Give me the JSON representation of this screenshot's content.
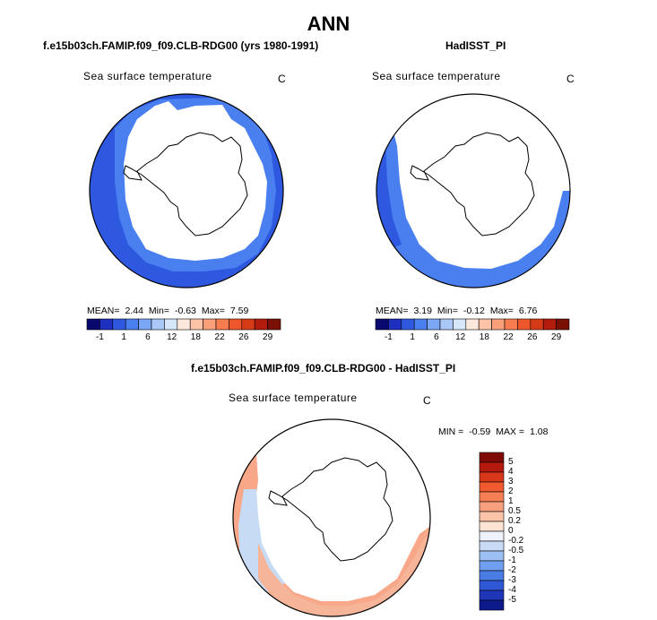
{
  "title": "ANN",
  "panels": [
    {
      "title": "f.e15b03ch.FAMIP.f09_f09.CLB-RDG00 (yrs 1980-1991)",
      "variable": "Sea surface temperature",
      "unit": "C",
      "stats": {
        "mean_label": "MEAN=",
        "mean": "2.44",
        "min_label": "Min=",
        "min": "-0.63",
        "max_label": "Max=",
        "max": "7.59"
      },
      "colorbar": {
        "ticks": [
          "-1",
          "1",
          "6",
          "12",
          "18",
          "22",
          "26",
          "29"
        ],
        "colors": [
          "#08086e",
          "#1e2fc0",
          "#2e58e0",
          "#4a7ff0",
          "#7aa6f5",
          "#a9c8f8",
          "#d6e6fb",
          "#fde8dd",
          "#fcc3a8",
          "#f9a07a",
          "#f77c50",
          "#f0562c",
          "#d63a17",
          "#b31b0a",
          "#7a0f06"
        ]
      }
    },
    {
      "title": "HadISST_PI",
      "variable": "Sea surface temperature",
      "unit": "C",
      "stats": {
        "mean_label": "MEAN=",
        "mean": "3.19",
        "min_label": "Min=",
        "min": "-0.12",
        "max_label": "Max=",
        "max": "6.76"
      },
      "colorbar": {
        "ticks": [
          "-1",
          "1",
          "6",
          "12",
          "18",
          "22",
          "26",
          "29"
        ],
        "colors": [
          "#08086e",
          "#1e2fc0",
          "#2e58e0",
          "#4a7ff0",
          "#7aa6f5",
          "#a9c8f8",
          "#d6e6fb",
          "#fde8dd",
          "#fcc3a8",
          "#f9a07a",
          "#f77c50",
          "#f0562c",
          "#d63a17",
          "#b31b0a",
          "#7a0f06"
        ]
      }
    },
    {
      "title": "f.e15b03ch.FAMIP.f09_f09.CLB-RDG00 - HadISST_PI",
      "variable": "Sea surface temperature",
      "unit": "C",
      "stats": {
        "min_label": "MIN =",
        "min": "-0.59",
        "max_label": "MAX =",
        "max": "1.08"
      },
      "colorbar": {
        "ticks": [
          "5",
          "4",
          "3",
          "2",
          "1",
          "0.5",
          "0.2",
          "0",
          "-0.2",
          "-0.5",
          "-1",
          "-2",
          "-3",
          "-4",
          "-5"
        ],
        "colors": [
          "#7f0a05",
          "#b31a0c",
          "#d8371a",
          "#f05a30",
          "#f67f55",
          "#f8a07e",
          "#fbc3a8",
          "#fde3d4",
          "#eef3fb",
          "#c7dbf5",
          "#9cc0f2",
          "#709ff0",
          "#4a7ce6",
          "#2f57d6",
          "#1f35b8",
          "#0d1a8a"
        ]
      }
    }
  ],
  "map_colors": {
    "land": "#ffffff",
    "ocean_cold": "#2e58e0",
    "ocean_cool": "#4a7ff0",
    "diff_warm": "#f8a888",
    "diff_cool": "#c7dbf5"
  }
}
